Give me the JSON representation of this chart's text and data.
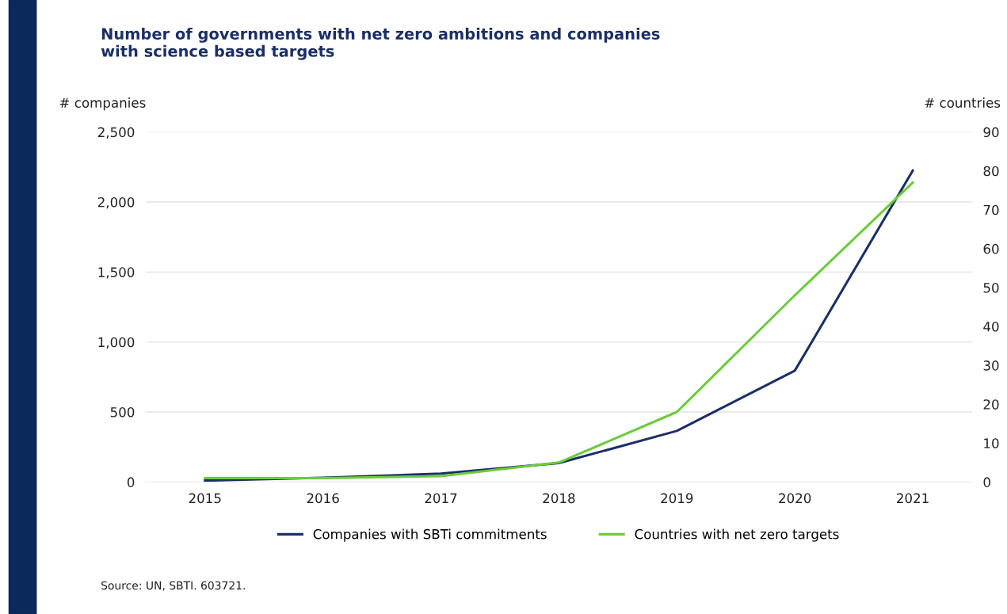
{
  "chart_data": {
    "type": "line",
    "title": "Number of governments with net zero ambitions and companies\nwith science based targets",
    "ylabel": "# companies",
    "y2label": "# countries",
    "categories": [
      "2015",
      "2016",
      "2017",
      "2018",
      "2019",
      "2020",
      "2021"
    ],
    "series": [
      {
        "name": "Companies with SBTi commitments",
        "color": "#1b2f66",
        "values": [
          10,
          30,
          60,
          135,
          365,
          795,
          2225
        ]
      },
      {
        "name": "Countries with net zero targets",
        "color": "#6ccb3c",
        "axis": "y2",
        "values": [
          1,
          1,
          1.5,
          5,
          18,
          48,
          77
        ]
      }
    ],
    "ylim": [
      0,
      2500
    ],
    "yticks": [
      0,
      {
        "value": 500,
        "label": "500"
      },
      {
        "value": 1000,
        "label": "1,000"
      },
      {
        "value": 1500,
        "label": "1,500"
      },
      {
        "value": 2000,
        "label": "2,000"
      },
      {
        "value": 2500,
        "label": "2,500"
      }
    ],
    "y2lim": [
      0,
      90
    ],
    "y2ticks": [
      0,
      10,
      20,
      30,
      40,
      50,
      60,
      70,
      80,
      90
    ],
    "grid": "y",
    "legend": "bottom",
    "marker": "none",
    "line_style": "solid",
    "annotations": [
      "Source: UN, SBTI. 603721."
    ]
  }
}
